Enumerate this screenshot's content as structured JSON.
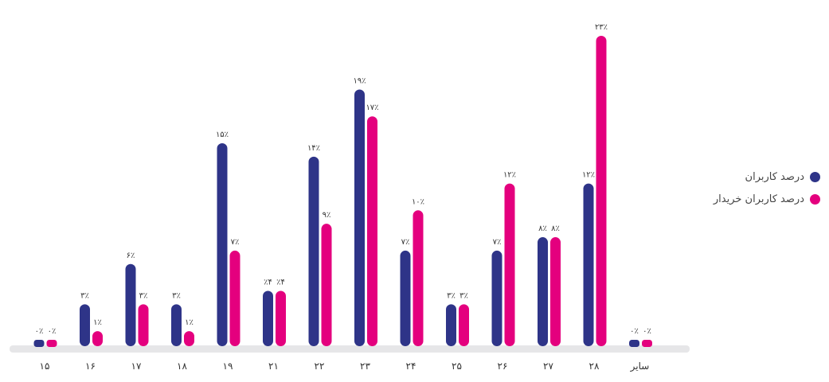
{
  "chart_data": {
    "type": "bar",
    "categories": [
      "۱۵",
      "۱۶",
      "۱۷",
      "۱۸",
      "۱۹",
      "۲۱",
      "۲۲",
      "۲۳",
      "۲۴",
      "۲۵",
      "۲۶",
      "۲۷",
      "۲۸",
      "سایر"
    ],
    "series": [
      {
        "name": "درصد کاربران",
        "color": "#2e3488",
        "values": [
          0,
          3,
          6,
          3,
          15,
          4,
          14,
          19,
          7,
          3,
          7,
          8,
          12,
          0
        ],
        "labels": [
          "۰٪",
          "۳٪",
          "۶٪",
          "۳٪",
          "۱۵٪",
          "٪۴",
          "۱۴٪",
          "۱۹٪",
          "۷٪",
          "۳٪",
          "۷٪",
          "۸٪",
          "۱۲٪",
          "۰٪"
        ]
      },
      {
        "name": "درصد کاربران خریدار",
        "color": "#e4007e",
        "values": [
          0,
          1,
          3,
          1,
          7,
          4,
          9,
          17,
          10,
          3,
          12,
          8,
          23,
          0
        ],
        "labels": [
          "۰٪",
          "۱٪",
          "۳٪",
          "۱٪",
          "۷٪",
          "٪۴",
          "۹٪",
          "۱۷٪",
          "۱۰٪",
          "۳٪",
          "۱۲٪",
          "۸٪",
          "۲۳٪",
          "۰٪"
        ]
      }
    ],
    "ylim": [
      0,
      23
    ],
    "title": "",
    "xlabel": "",
    "ylabel": "",
    "grid": false,
    "legend_position": "right",
    "axis_color": "#e6e6e8"
  }
}
